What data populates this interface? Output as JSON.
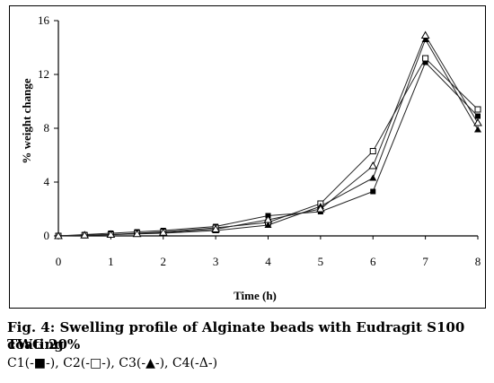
{
  "chart_data": {
    "type": "line",
    "xlabel": "Time (h)",
    "ylabel": "% weight change",
    "xlim": [
      0,
      8
    ],
    "ylim": [
      0,
      16
    ],
    "xticks": [
      0,
      1,
      2,
      3,
      4,
      5,
      6,
      7,
      8
    ],
    "yticks": [
      0,
      4,
      8,
      12,
      16
    ],
    "grid": false,
    "x": [
      0,
      0.5,
      1,
      1.5,
      2,
      3,
      4,
      5,
      6,
      7,
      8
    ],
    "series": [
      {
        "name": "C1",
        "marker": "filled-square",
        "values": [
          0,
          0.1,
          0.2,
          0.3,
          0.4,
          0.7,
          1.5,
          1.8,
          3.3,
          12.9,
          8.9
        ]
      },
      {
        "name": "C2",
        "marker": "open-square",
        "values": [
          0,
          0.05,
          0.1,
          0.2,
          0.3,
          0.6,
          1.0,
          2.4,
          6.3,
          13.2,
          9.4
        ]
      },
      {
        "name": "C3",
        "marker": "filled-triangle",
        "values": [
          0,
          0.05,
          0.1,
          0.15,
          0.2,
          0.4,
          0.8,
          2.2,
          4.3,
          14.6,
          7.9
        ]
      },
      {
        "name": "C4",
        "marker": "open-triangle",
        "values": [
          0,
          0.05,
          0.1,
          0.15,
          0.25,
          0.5,
          1.2,
          2.0,
          5.2,
          14.9,
          8.4
        ]
      }
    ]
  },
  "caption": {
    "line1": "Fig. 4: Swelling profile of Alginate beads with Eudragit S100 coating",
    "line2": "TWG 20%",
    "line3": "C1(-■-), C2(-□-), C3(-▲-), C4(-Δ-)"
  }
}
